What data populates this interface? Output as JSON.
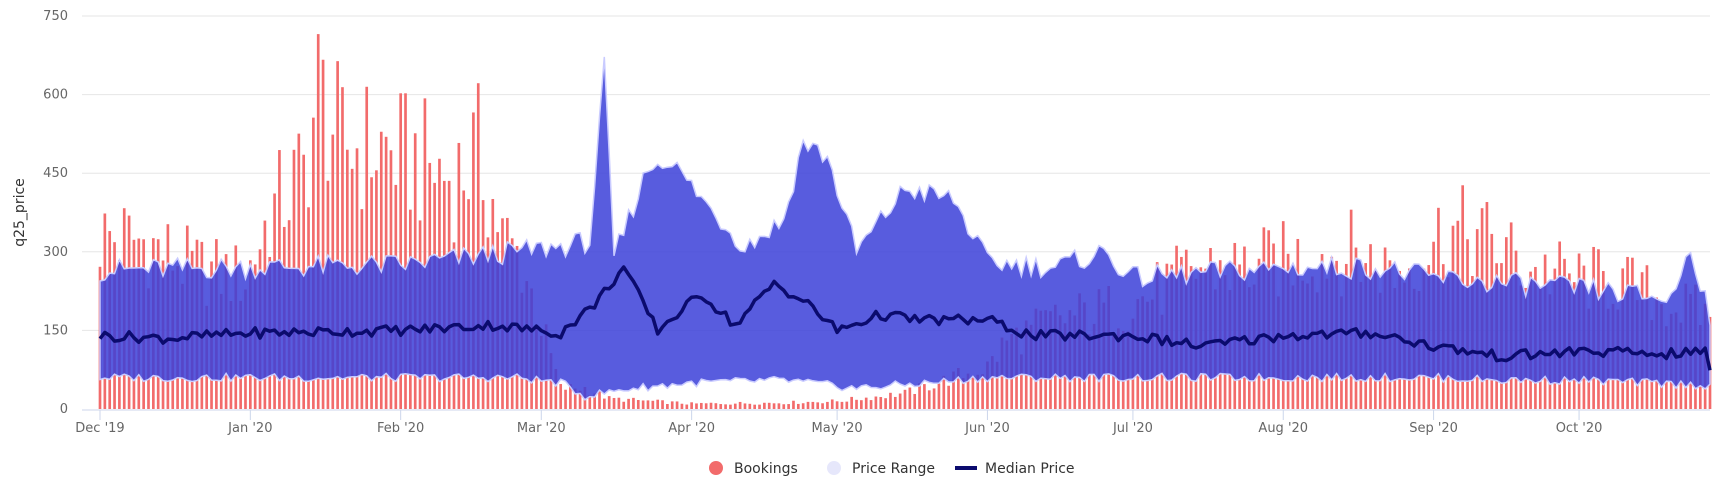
{
  "chart_data": {
    "type": "bar-area-line",
    "y_axis": {
      "title": "q25_price",
      "min": 0,
      "max": 750,
      "ticks": [
        0,
        150,
        300,
        450,
        600,
        750
      ]
    },
    "x_axis": {
      "start_date": "2019-12-01",
      "end_date": "2020-10-28",
      "tick_labels": [
        {
          "label": "Dec '19",
          "date": "2019-12-01"
        },
        {
          "label": "Jan '20",
          "date": "2020-01-01"
        },
        {
          "label": "Feb '20",
          "date": "2020-02-01"
        },
        {
          "label": "Mar '20",
          "date": "2020-03-01"
        },
        {
          "label": "Apr '20",
          "date": "2020-04-01"
        },
        {
          "label": "May '20",
          "date": "2020-05-01"
        },
        {
          "label": "Jun '20",
          "date": "2020-06-01"
        },
        {
          "label": "Jul '20",
          "date": "2020-07-01"
        },
        {
          "label": "Aug '20",
          "date": "2020-08-01"
        },
        {
          "label": "Sep '20",
          "date": "2020-09-01"
        },
        {
          "label": "Oct '20",
          "date": "2020-10-01"
        }
      ]
    },
    "series": [
      {
        "name": "Bookings",
        "type": "column",
        "color": "#f26b6b",
        "anchors": [
          [
            "2019-12-01",
            330
          ],
          [
            "2019-12-10",
            320
          ],
          [
            "2019-12-20",
            270
          ],
          [
            "2019-12-31",
            250
          ],
          [
            "2020-01-05",
            370
          ],
          [
            "2020-01-12",
            450
          ],
          [
            "2020-01-15",
            610
          ],
          [
            "2020-01-20",
            500
          ],
          [
            "2020-01-27",
            500
          ],
          [
            "2020-02-05",
            470
          ],
          [
            "2020-02-12",
            440
          ],
          [
            "2020-02-17",
            490
          ],
          [
            "2020-02-22",
            330
          ],
          [
            "2020-02-26",
            280
          ],
          [
            "2020-03-05",
            40
          ],
          [
            "2020-03-10",
            40
          ],
          [
            "2020-03-15",
            20
          ],
          [
            "2020-04-01",
            10
          ],
          [
            "2020-04-20",
            12
          ],
          [
            "2020-05-01",
            15
          ],
          [
            "2020-05-15",
            30
          ],
          [
            "2020-05-25",
            60
          ],
          [
            "2020-06-01",
            80
          ],
          [
            "2020-06-05",
            130
          ],
          [
            "2020-06-15",
            170
          ],
          [
            "2020-07-01",
            200
          ],
          [
            "2020-07-15",
            270
          ],
          [
            "2020-07-25",
            270
          ],
          [
            "2020-08-05",
            290
          ],
          [
            "2020-08-15",
            300
          ],
          [
            "2020-08-25",
            260
          ],
          [
            "2020-09-03",
            340
          ],
          [
            "2020-09-10",
            330
          ],
          [
            "2020-09-15",
            310
          ],
          [
            "2020-09-20",
            270
          ],
          [
            "2020-10-01",
            250
          ],
          [
            "2020-10-10",
            240
          ],
          [
            "2020-10-20",
            200
          ],
          [
            "2020-10-28",
            180
          ]
        ]
      },
      {
        "name": "Price Range",
        "type": "arearange",
        "color": "#3b3fd8",
        "low": [
          [
            "2019-12-01",
            60
          ],
          [
            "2020-02-25",
            60
          ],
          [
            "2020-03-05",
            50
          ],
          [
            "2020-03-10",
            25
          ],
          [
            "2020-03-20",
            40
          ],
          [
            "2020-04-01",
            50
          ],
          [
            "2020-04-20",
            55
          ],
          [
            "2020-05-05",
            40
          ],
          [
            "2020-05-20",
            50
          ],
          [
            "2020-06-01",
            60
          ],
          [
            "2020-07-01",
            60
          ],
          [
            "2020-09-01",
            60
          ],
          [
            "2020-09-15",
            55
          ],
          [
            "2020-10-01",
            55
          ],
          [
            "2020-10-28",
            45
          ]
        ],
        "high": [
          [
            "2019-12-01",
            265
          ],
          [
            "2020-01-01",
            270
          ],
          [
            "2020-02-01",
            275
          ],
          [
            "2020-02-25",
            300
          ],
          [
            "2020-03-05",
            310
          ],
          [
            "2020-03-11",
            320
          ],
          [
            "2020-03-14",
            650
          ],
          [
            "2020-03-16",
            290
          ],
          [
            "2020-03-23",
            460
          ],
          [
            "2020-03-27",
            480
          ],
          [
            "2020-04-05",
            380
          ],
          [
            "2020-04-12",
            310
          ],
          [
            "2020-04-20",
            360
          ],
          [
            "2020-04-24",
            510
          ],
          [
            "2020-04-29",
            480
          ],
          [
            "2020-05-05",
            300
          ],
          [
            "2020-05-15",
            420
          ],
          [
            "2020-05-25",
            400
          ],
          [
            "2020-06-01",
            280
          ],
          [
            "2020-06-15",
            270
          ],
          [
            "2020-06-25",
            300
          ],
          [
            "2020-07-01",
            250
          ],
          [
            "2020-08-01",
            270
          ],
          [
            "2020-08-20",
            270
          ],
          [
            "2020-09-01",
            250
          ],
          [
            "2020-09-15",
            240
          ],
          [
            "2020-10-01",
            230
          ],
          [
            "2020-10-20",
            210
          ],
          [
            "2020-10-24",
            310
          ],
          [
            "2020-10-28",
            180
          ]
        ]
      },
      {
        "name": "Median Price",
        "type": "line",
        "color": "#0b0b6e",
        "anchors": [
          [
            "2019-12-01",
            140
          ],
          [
            "2019-12-15",
            135
          ],
          [
            "2020-01-01",
            145
          ],
          [
            "2020-02-01",
            150
          ],
          [
            "2020-02-20",
            160
          ],
          [
            "2020-03-05",
            145
          ],
          [
            "2020-03-12",
            200
          ],
          [
            "2020-03-18",
            270
          ],
          [
            "2020-03-25",
            150
          ],
          [
            "2020-04-03",
            220
          ],
          [
            "2020-04-10",
            160
          ],
          [
            "2020-04-18",
            240
          ],
          [
            "2020-04-25",
            200
          ],
          [
            "2020-05-01",
            150
          ],
          [
            "2020-05-10",
            180
          ],
          [
            "2020-05-18",
            170
          ],
          [
            "2020-06-01",
            170
          ],
          [
            "2020-06-10",
            140
          ],
          [
            "2020-06-20",
            140
          ],
          [
            "2020-07-01",
            140
          ],
          [
            "2020-07-15",
            120
          ],
          [
            "2020-08-01",
            140
          ],
          [
            "2020-08-20",
            145
          ],
          [
            "2020-09-01",
            120
          ],
          [
            "2020-09-15",
            100
          ],
          [
            "2020-10-01",
            110
          ],
          [
            "2020-10-20",
            105
          ],
          [
            "2020-10-27",
            110
          ],
          [
            "2020-10-28",
            80
          ]
        ]
      }
    ],
    "legend": {
      "position": "bottom-center",
      "items": [
        "Bookings",
        "Price Range",
        "Median Price"
      ]
    },
    "grid": true
  }
}
